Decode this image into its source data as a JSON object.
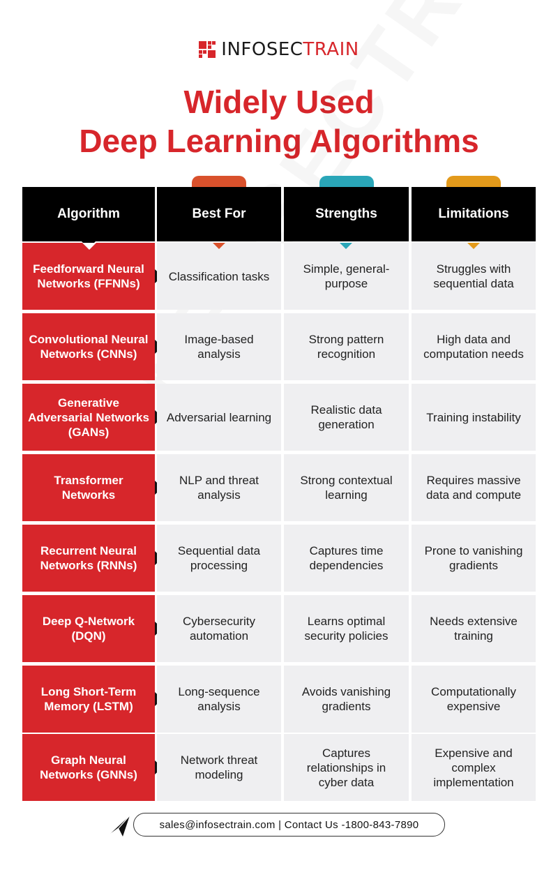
{
  "brand": {
    "name_dark": "INFOSEC",
    "name_accent": "TRAIN",
    "watermark": "INFOSECTRAIN"
  },
  "title": {
    "line1": "Widely Used",
    "line2": "Deep Learning Algorithms"
  },
  "colors": {
    "accent": "#d7262b",
    "tab_best_for": "#d9512c",
    "tab_strengths": "#2aa6b8",
    "tab_limitations": "#e39a1b"
  },
  "headers": [
    "Algorithm",
    "Best For",
    "Strengths",
    "Limitations"
  ],
  "rows": [
    {
      "algorithm": "Feedforward Neural Networks (FFNNs)",
      "best_for": "Classification tasks",
      "strengths": "Simple, general-purpose",
      "limitations": "Struggles with sequential data"
    },
    {
      "algorithm": "Convolutional Neural Networks (CNNs)",
      "best_for": "Image-based analysis",
      "strengths": "Strong pattern recognition",
      "limitations": "High data and computation needs"
    },
    {
      "algorithm": "Generative Adversarial Networks (GANs)",
      "best_for": "Adversarial learning",
      "strengths": "Realistic data generation",
      "limitations": "Training instability"
    },
    {
      "algorithm": "Transformer Networks",
      "best_for": "NLP and threat analysis",
      "strengths": "Strong contextual learning",
      "limitations": "Requires massive data and compute"
    },
    {
      "algorithm": "Recurrent Neural Networks (RNNs)",
      "best_for": "Sequential data processing",
      "strengths": "Captures time dependencies",
      "limitations": "Prone to vanishing gradients"
    },
    {
      "algorithm": "Deep Q-Network (DQN)",
      "best_for": "Cybersecurity automation",
      "strengths": "Learns optimal security policies",
      "limitations": "Needs extensive training"
    },
    {
      "algorithm": "Long Short-Term Memory (LSTM)",
      "best_for": "Long-sequence analysis",
      "strengths": "Avoids vanishing gradients",
      "limitations": "Computationally expensive"
    },
    {
      "algorithm": "Graph Neural Networks (GNNs)",
      "best_for": "Network threat modeling",
      "strengths": "Captures relationships in cyber data",
      "limitations": "Expensive and complex implementation"
    }
  ],
  "footer": {
    "contact": "sales@infosectrain.com | Contact Us -1800-843-7890",
    "icon": "paper-plane-icon"
  }
}
